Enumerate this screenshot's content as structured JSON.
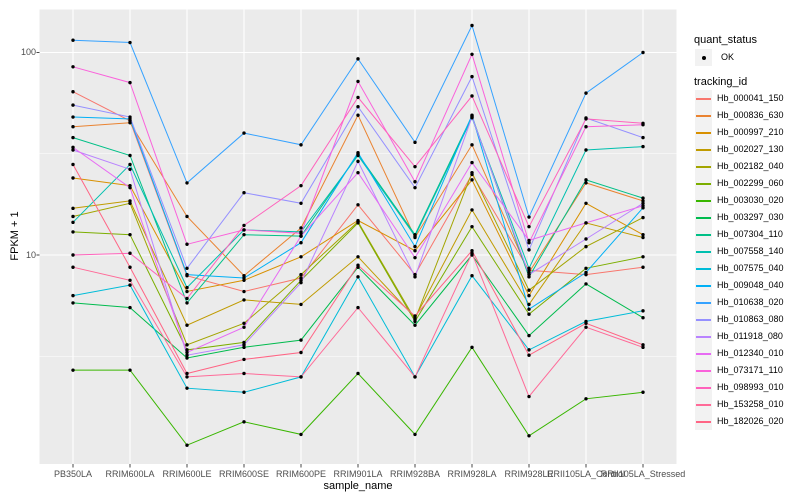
{
  "colors": {
    "background": "#FFFFFF",
    "panel_bg": "#EBEBEB",
    "grid": "#FFFFFF",
    "tick_mark": "#333333",
    "tick_label": "#4D4D4D",
    "text": "#000000",
    "legend_key_bg": "#F2F2F2",
    "point": "#000000"
  },
  "axes": {
    "x_title": "sample_name",
    "y_title": "FPKM + 1",
    "y_tick_labels": [
      "100",
      "10"
    ]
  },
  "legend": {
    "quant_status": {
      "title": "quant_status",
      "items": [
        {
          "label": "OK",
          "symbol": "point-icon"
        }
      ]
    },
    "tracking": {
      "title": "tracking_id"
    }
  },
  "chart_data": {
    "type": "line",
    "title": "",
    "xlabel": "sample_name",
    "ylabel": "FPKM + 1",
    "y_scale": "log10",
    "y_ticks": [
      100,
      10
    ],
    "y_minor_gridlines": [
      31.62,
      3.162
    ],
    "ylim": [
      0.92,
      170
    ],
    "grid": true,
    "legend_position": "right",
    "point_color": "#000000",
    "x_categories": [
      "PB350LA",
      "RRIM600LA",
      "RRIM600LE",
      "RRIM600SE",
      "RRIM600PE",
      "RRIM901LA",
      "RRIM928BA",
      "RRIM928LA",
      "RRIM928LE",
      "RRII105LA_Control",
      "RRII105LA_Stressed"
    ],
    "series": [
      {
        "name": "Hb_000041_150",
        "color": "#F8766D",
        "values": [
          64,
          46,
          7.9,
          6.6,
          7.7,
          17.7,
          8.0,
          25,
          8.4,
          8.0,
          8.7
        ]
      },
      {
        "name": "Hb_000836_630",
        "color": "#EA8331",
        "values": [
          43,
          45,
          15.5,
          7.9,
          13.6,
          49,
          12.2,
          35,
          8.2,
          22.7,
          18.5
        ]
      },
      {
        "name": "Hb_000997_210",
        "color": "#D89000",
        "values": [
          24,
          22,
          6.6,
          7.5,
          9.8,
          14.8,
          10.5,
          23.5,
          6.3,
          18,
          12.6
        ]
      },
      {
        "name": "Hb_002027_130",
        "color": "#C09B00",
        "values": [
          17,
          18.5,
          4.5,
          6.0,
          5.7,
          9.8,
          4.9,
          16.7,
          5.7,
          14.4,
          12.2
        ]
      },
      {
        "name": "Hb_002182_040",
        "color": "#A3A500",
        "values": [
          15.5,
          18,
          3.6,
          4.6,
          8.0,
          14.6,
          4.8,
          25.5,
          6.7,
          11,
          15.3
        ]
      },
      {
        "name": "Hb_002299_060",
        "color": "#7CAE00",
        "values": [
          13,
          12.6,
          3.4,
          3.7,
          7.5,
          14.4,
          4.7,
          13.8,
          5.1,
          8.6,
          9.8
        ]
      },
      {
        "name": "Hb_003030_020",
        "color": "#39B600",
        "values": [
          2.7,
          2.7,
          1.15,
          1.5,
          1.3,
          2.6,
          1.3,
          3.5,
          1.28,
          1.95,
          2.1
        ]
      },
      {
        "name": "Hb_003297_030",
        "color": "#00BB4E",
        "values": [
          5.8,
          5.5,
          3.1,
          3.5,
          3.8,
          8.7,
          4.5,
          10,
          4.0,
          7.2,
          4.9
        ]
      },
      {
        "name": "Hb_007304_110",
        "color": "#00C087",
        "values": [
          38,
          31,
          5.8,
          12.6,
          12.4,
          31.5,
          12.6,
          48.5,
          7.8,
          23.5,
          19.1
        ]
      },
      {
        "name": "Hb_007558_140",
        "color": "#00C0AF",
        "values": [
          14.5,
          28,
          6.9,
          13.3,
          13.0,
          31,
          12.4,
          47.6,
          8.6,
          33,
          34.3
        ]
      },
      {
        "name": "Hb_007575_040",
        "color": "#00BCD8",
        "values": [
          6.3,
          7.1,
          2.2,
          2.1,
          2.5,
          7.8,
          2.5,
          7.9,
          3.4,
          4.7,
          5.3
        ]
      },
      {
        "name": "Hb_009048_040",
        "color": "#00B0F6",
        "values": [
          48,
          47,
          8.0,
          7.7,
          11.5,
          32,
          11,
          49,
          5.4,
          8.2,
          17.1
        ]
      },
      {
        "name": "Hb_010638_020",
        "color": "#35A2FF",
        "values": [
          115,
          112,
          22.7,
          40,
          35,
          93,
          36,
          136,
          15.4,
          63,
          100
        ]
      },
      {
        "name": "Hb_010863_080",
        "color": "#9590FF",
        "values": [
          55,
          48,
          8.6,
          20.3,
          18,
          54,
          21.5,
          76,
          10.6,
          47.5,
          38
        ]
      },
      {
        "name": "Hb_011918_080",
        "color": "#B983FF",
        "values": [
          33,
          26.5,
          3.2,
          3.6,
          7.3,
          29,
          7.8,
          48,
          8.0,
          12,
          18
        ]
      },
      {
        "name": "Hb_012340_010",
        "color": "#E76BF3",
        "values": [
          34,
          21.5,
          3.3,
          4.4,
          12.4,
          25.5,
          9.7,
          28.6,
          11.8,
          14.4,
          17.5
        ]
      },
      {
        "name": "Hb_073171_110",
        "color": "#FA62DB",
        "values": [
          85,
          71,
          11.3,
          13.3,
          12.8,
          72,
          23,
          98,
          11.5,
          43,
          44
        ]
      },
      {
        "name": "Hb_098993_010",
        "color": "#FF62BC",
        "values": [
          10,
          10.2,
          6.1,
          14,
          22,
          60,
          27.3,
          61,
          13.8,
          47,
          44.7
        ]
      },
      {
        "name": "Hb_153258_010",
        "color": "#FF6A98",
        "values": [
          8.7,
          7.5,
          2.5,
          2.6,
          2.5,
          5.5,
          2.5,
          10.2,
          2.0,
          4.4,
          3.5
        ]
      },
      {
        "name": "Hb_182026_020",
        "color": "#FF6585",
        "values": [
          28,
          8.7,
          2.6,
          3.05,
          3.3,
          8.9,
          5.0,
          10.5,
          3.2,
          4.6,
          3.6
        ]
      }
    ]
  }
}
